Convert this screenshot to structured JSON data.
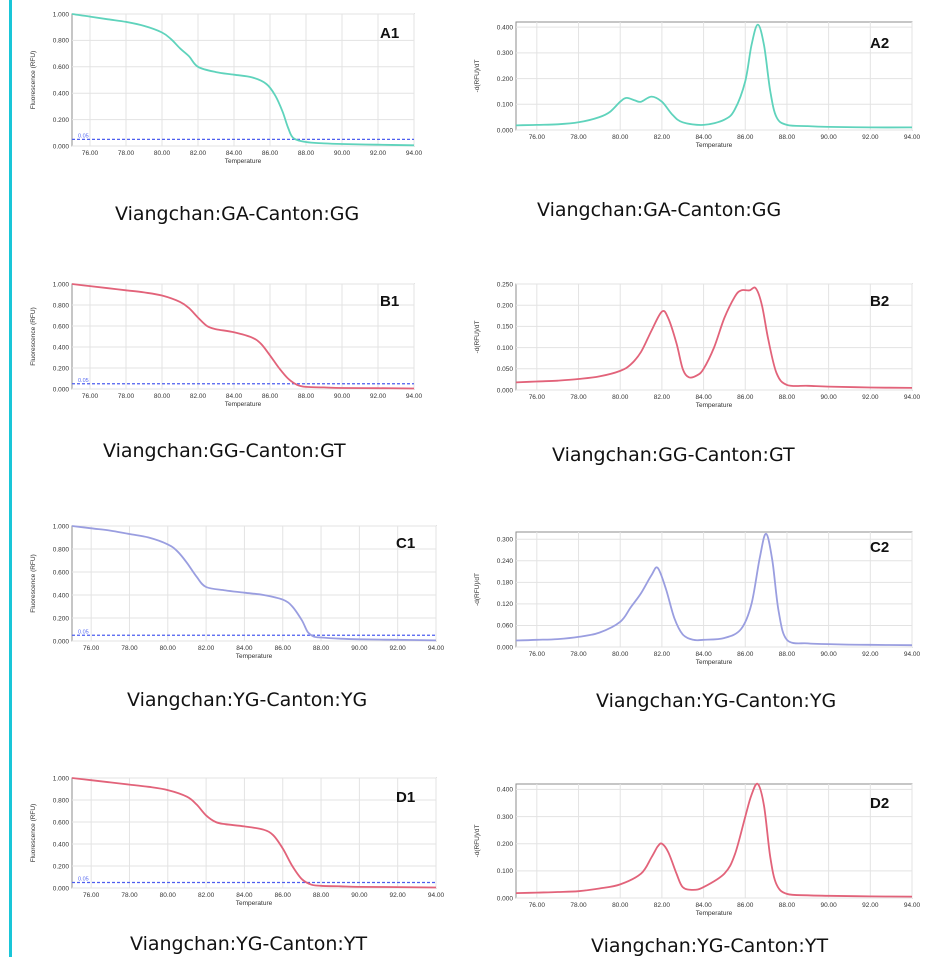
{
  "colors": {
    "teal": "#5fd3bc",
    "pink": "#e2637a",
    "lavender": "#9a9ee0",
    "threshold": "#4d5ef0",
    "sidebar": "#19c6d8"
  },
  "panels": [
    {
      "id": "A1",
      "label": "A1",
      "caption": "Viangchan:GA-Canton:GG"
    },
    {
      "id": "A2",
      "label": "A2",
      "caption": "Viangchan:GA-Canton:GG"
    },
    {
      "id": "B1",
      "label": "B1",
      "caption": "Viangchan:GG-Canton:GT"
    },
    {
      "id": "B2",
      "label": "B2",
      "caption": "Viangchan:GG-Canton:GT"
    },
    {
      "id": "C1",
      "label": "C1",
      "caption": "Viangchan:YG-Canton:YG"
    },
    {
      "id": "C2",
      "label": "C2",
      "caption": "Viangchan:YG-Canton:YG"
    },
    {
      "id": "D1",
      "label": "D1",
      "caption": "Viangchan:YG-Canton:YT"
    },
    {
      "id": "D2",
      "label": "D2",
      "caption": "Viangchan:YG-Canton:YT"
    }
  ],
  "chart_data": [
    {
      "id": "A1",
      "type": "line",
      "color": "teal",
      "xlabel": "Temperature",
      "ylabel": "Fluorescence (RFU)",
      "xlim": [
        75,
        94
      ],
      "ylim": [
        0,
        1
      ],
      "xticks": [
        "76.00",
        "78.00",
        "80.00",
        "82.00",
        "84.00",
        "86.00",
        "88.00",
        "90.00",
        "92.00",
        "94.00"
      ],
      "yticks": [
        "0.000",
        "0.200",
        "0.400",
        "0.600",
        "0.800",
        "1.000"
      ],
      "threshold": {
        "value": 0.05,
        "label": "0.05"
      },
      "series": [
        {
          "x": [
            75,
            76,
            77,
            78,
            79,
            80,
            80.5,
            81,
            81.5,
            82,
            83,
            84,
            85,
            85.8,
            86.3,
            86.7,
            87,
            87.3,
            88,
            89,
            90,
            92,
            94
          ],
          "y": [
            1.0,
            0.98,
            0.96,
            0.94,
            0.91,
            0.86,
            0.81,
            0.74,
            0.68,
            0.6,
            0.56,
            0.54,
            0.52,
            0.47,
            0.38,
            0.26,
            0.14,
            0.06,
            0.03,
            0.02,
            0.015,
            0.01,
            0.005
          ]
        }
      ]
    },
    {
      "id": "A2",
      "type": "line",
      "color": "teal",
      "xlabel": "Temperature",
      "ylabel": "-d(RFU)/dT",
      "xlim": [
        75,
        94
      ],
      "ylim": [
        0,
        0.42
      ],
      "xticks": [
        "76.00",
        "78.00",
        "80.00",
        "82.00",
        "84.00",
        "86.00",
        "88.00",
        "90.00",
        "92.00",
        "94.00"
      ],
      "yticks": [
        "0.000",
        "0.100",
        "0.200",
        "0.300",
        "0.400"
      ],
      "series": [
        {
          "x": [
            75,
            76,
            77,
            78,
            79,
            79.5,
            80,
            80.3,
            80.7,
            81,
            81.5,
            82,
            82.5,
            83,
            84,
            85,
            85.5,
            86,
            86.3,
            86.6,
            86.9,
            87.2,
            87.5,
            88,
            89,
            90,
            92,
            94
          ],
          "y": [
            0.018,
            0.02,
            0.022,
            0.03,
            0.05,
            0.07,
            0.11,
            0.125,
            0.115,
            0.11,
            0.13,
            0.11,
            0.06,
            0.03,
            0.02,
            0.04,
            0.08,
            0.19,
            0.33,
            0.41,
            0.33,
            0.15,
            0.05,
            0.02,
            0.015,
            0.012,
            0.01,
            0.01
          ]
        }
      ]
    },
    {
      "id": "B1",
      "type": "line",
      "color": "pink",
      "xlabel": "Temperature",
      "ylabel": "Fluorescence (RFU)",
      "xlim": [
        75,
        94
      ],
      "ylim": [
        0,
        1
      ],
      "xticks": [
        "76.00",
        "78.00",
        "80.00",
        "82.00",
        "84.00",
        "86.00",
        "88.00",
        "90.00",
        "92.00",
        "94.00"
      ],
      "yticks": [
        "0.000",
        "0.200",
        "0.400",
        "0.600",
        "0.800",
        "1.000"
      ],
      "threshold": {
        "value": 0.05,
        "label": "0.05"
      },
      "series": [
        {
          "x": [
            75,
            76,
            77,
            78,
            79,
            80,
            81,
            81.5,
            82,
            82.5,
            83,
            84,
            85,
            85.5,
            86,
            86.5,
            87,
            87.5,
            88,
            89,
            90,
            92,
            94
          ],
          "y": [
            1.0,
            0.98,
            0.96,
            0.94,
            0.92,
            0.89,
            0.83,
            0.77,
            0.68,
            0.6,
            0.57,
            0.54,
            0.49,
            0.43,
            0.32,
            0.2,
            0.1,
            0.04,
            0.02,
            0.015,
            0.01,
            0.008,
            0.005
          ]
        }
      ]
    },
    {
      "id": "B2",
      "type": "line",
      "color": "pink",
      "xlabel": "Temperature",
      "ylabel": "-d(RFU)/dT",
      "xlim": [
        75,
        94
      ],
      "ylim": [
        0,
        0.25
      ],
      "xticks": [
        "76.00",
        "78.00",
        "80.00",
        "82.00",
        "84.00",
        "86.00",
        "88.00",
        "90.00",
        "92.00",
        "94.00"
      ],
      "yticks": [
        "0.000",
        "0.050",
        "0.100",
        "0.150",
        "0.200",
        "0.250"
      ],
      "series": [
        {
          "x": [
            75,
            76,
            77,
            78,
            79,
            80,
            80.5,
            81,
            81.5,
            82,
            82.3,
            82.7,
            83,
            83.3,
            83.7,
            84,
            84.5,
            85,
            85.5,
            85.8,
            86.2,
            86.5,
            86.8,
            87.1,
            87.5,
            88,
            89,
            90,
            92,
            94
          ],
          "y": [
            0.018,
            0.02,
            0.022,
            0.026,
            0.032,
            0.045,
            0.06,
            0.09,
            0.14,
            0.185,
            0.17,
            0.11,
            0.05,
            0.03,
            0.035,
            0.05,
            0.1,
            0.17,
            0.22,
            0.235,
            0.235,
            0.24,
            0.2,
            0.12,
            0.04,
            0.012,
            0.01,
            0.008,
            0.006,
            0.005
          ]
        }
      ]
    },
    {
      "id": "C1",
      "type": "line",
      "color": "lavender",
      "xlabel": "Temperature",
      "ylabel": "Fluorescence (RFU)",
      "xlim": [
        75,
        94
      ],
      "ylim": [
        0,
        1
      ],
      "xticks": [
        "76.00",
        "78.00",
        "80.00",
        "82.00",
        "84.00",
        "86.00",
        "88.00",
        "90.00",
        "92.00",
        "94.00"
      ],
      "yticks": [
        "0.000",
        "0.200",
        "0.400",
        "0.600",
        "0.800",
        "1.000"
      ],
      "threshold": {
        "value": 0.05,
        "label": "0.05"
      },
      "series": [
        {
          "x": [
            75,
            76,
            77,
            78,
            79,
            80,
            80.5,
            81,
            81.5,
            82,
            83,
            84,
            85,
            86,
            86.5,
            87,
            87.3,
            87.6,
            88,
            89,
            90,
            92,
            94
          ],
          "y": [
            1.0,
            0.98,
            0.96,
            0.93,
            0.9,
            0.84,
            0.78,
            0.68,
            0.56,
            0.47,
            0.44,
            0.42,
            0.4,
            0.36,
            0.3,
            0.18,
            0.08,
            0.04,
            0.03,
            0.02,
            0.015,
            0.01,
            0.005
          ]
        }
      ]
    },
    {
      "id": "C2",
      "type": "line",
      "color": "lavender",
      "xlabel": "Temperature",
      "ylabel": "-d(RFU)/dT",
      "xlim": [
        75,
        94
      ],
      "ylim": [
        0,
        0.32
      ],
      "xticks": [
        "76.00",
        "78.00",
        "80.00",
        "82.00",
        "84.00",
        "86.00",
        "88.00",
        "90.00",
        "92.00",
        "94.00"
      ],
      "yticks": [
        "0.000",
        "0.060",
        "0.120",
        "0.180",
        "0.240",
        "0.300"
      ],
      "series": [
        {
          "x": [
            75,
            76,
            77,
            78,
            79,
            80,
            80.5,
            81,
            81.5,
            81.8,
            82.2,
            82.6,
            83,
            83.5,
            84,
            85,
            85.8,
            86.3,
            86.7,
            87,
            87.3,
            87.6,
            88,
            89,
            90,
            92,
            94
          ],
          "y": [
            0.018,
            0.02,
            0.022,
            0.028,
            0.04,
            0.07,
            0.11,
            0.15,
            0.2,
            0.22,
            0.16,
            0.08,
            0.035,
            0.02,
            0.02,
            0.025,
            0.05,
            0.12,
            0.25,
            0.315,
            0.24,
            0.1,
            0.02,
            0.01,
            0.008,
            0.006,
            0.005
          ]
        }
      ]
    },
    {
      "id": "D1",
      "type": "line",
      "color": "pink",
      "xlabel": "Temperature",
      "ylabel": "Fluorescence (RFU)",
      "xlim": [
        75,
        94
      ],
      "ylim": [
        0,
        1
      ],
      "xticks": [
        "76.00",
        "78.00",
        "80.00",
        "82.00",
        "84.00",
        "86.00",
        "88.00",
        "90.00",
        "92.00",
        "94.00"
      ],
      "yticks": [
        "0.000",
        "0.200",
        "0.400",
        "0.600",
        "0.800",
        "1.000"
      ],
      "threshold": {
        "value": 0.05,
        "label": "0.05"
      },
      "series": [
        {
          "x": [
            75,
            76,
            77,
            78,
            79,
            80,
            81,
            81.5,
            82,
            82.5,
            83,
            84,
            85,
            85.5,
            86,
            86.5,
            87,
            87.5,
            88,
            89,
            90,
            92,
            94
          ],
          "y": [
            1.0,
            0.98,
            0.96,
            0.94,
            0.92,
            0.89,
            0.83,
            0.76,
            0.66,
            0.6,
            0.58,
            0.56,
            0.53,
            0.48,
            0.36,
            0.2,
            0.08,
            0.03,
            0.02,
            0.015,
            0.01,
            0.008,
            0.005
          ]
        }
      ]
    },
    {
      "id": "D2",
      "type": "line",
      "color": "pink",
      "xlabel": "Temperature",
      "ylabel": "-d(RFU)/dT",
      "xlim": [
        75,
        94
      ],
      "ylim": [
        0,
        0.42
      ],
      "xticks": [
        "76.00",
        "78.00",
        "80.00",
        "82.00",
        "84.00",
        "86.00",
        "88.00",
        "90.00",
        "92.00",
        "94.00"
      ],
      "yticks": [
        "0.000",
        "0.100",
        "0.200",
        "0.300",
        "0.400"
      ],
      "series": [
        {
          "x": [
            75,
            76,
            77,
            78,
            79,
            80,
            81,
            81.5,
            81.8,
            82,
            82.3,
            82.7,
            83,
            83.5,
            84,
            85,
            85.5,
            86,
            86.3,
            86.6,
            86.9,
            87.2,
            87.5,
            88,
            89,
            90,
            92,
            94
          ],
          "y": [
            0.018,
            0.02,
            0.022,
            0.025,
            0.035,
            0.05,
            0.09,
            0.15,
            0.19,
            0.2,
            0.17,
            0.09,
            0.04,
            0.03,
            0.04,
            0.09,
            0.16,
            0.3,
            0.38,
            0.42,
            0.34,
            0.15,
            0.05,
            0.015,
            0.01,
            0.008,
            0.006,
            0.005
          ]
        }
      ]
    }
  ]
}
